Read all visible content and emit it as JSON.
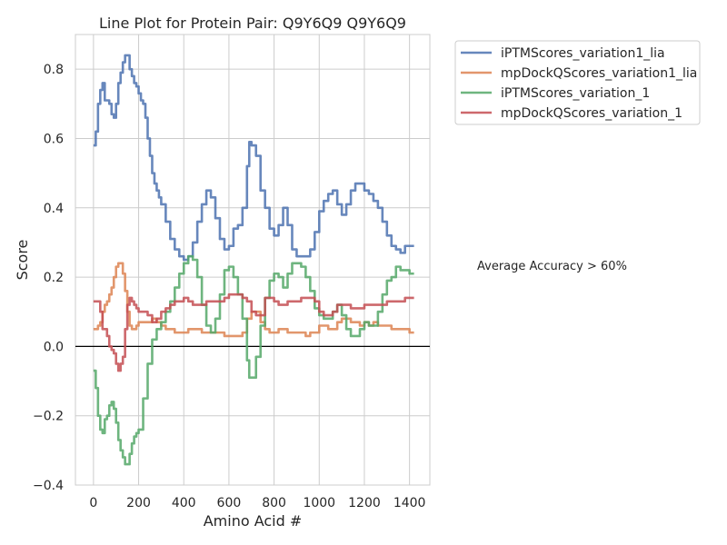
{
  "chart_data": {
    "type": "line",
    "title": "Line Plot for Protein Pair: Q9Y6Q9 Q9Y6Q9",
    "xlabel": "Amino Acid #",
    "ylabel": "Score",
    "xlim": [
      -80,
      1490
    ],
    "ylim": [
      -0.4,
      0.9
    ],
    "xticks": [
      0,
      200,
      400,
      600,
      800,
      1000,
      1200,
      1400
    ],
    "yticks": [
      -0.4,
      -0.2,
      0.0,
      0.2,
      0.4,
      0.6,
      0.8
    ],
    "ytick_labels": [
      "−0.4",
      "−0.2",
      "0.0",
      "0.2",
      "0.4",
      "0.6",
      "0.8"
    ],
    "grid": true,
    "zero_line": 0.0,
    "legend_position": "outside top-right",
    "annotation": "Average Accuracy > 60%",
    "series": [
      {
        "name": "iPTMScores_variation1_lia",
        "color": "#4c72b0",
        "x": [
          0,
          10,
          20,
          30,
          40,
          50,
          60,
          70,
          80,
          90,
          100,
          110,
          120,
          130,
          140,
          150,
          160,
          170,
          180,
          190,
          200,
          210,
          220,
          230,
          240,
          250,
          260,
          270,
          280,
          290,
          300,
          320,
          340,
          360,
          380,
          400,
          420,
          440,
          460,
          480,
          500,
          520,
          540,
          560,
          580,
          600,
          620,
          640,
          660,
          680,
          690,
          700,
          720,
          740,
          760,
          780,
          800,
          820,
          840,
          860,
          880,
          900,
          920,
          940,
          960,
          980,
          1000,
          1020,
          1040,
          1060,
          1080,
          1100,
          1120,
          1140,
          1160,
          1180,
          1200,
          1220,
          1240,
          1260,
          1280,
          1300,
          1320,
          1340,
          1360,
          1380,
          1400,
          1420
        ],
        "values": [
          0.58,
          0.62,
          0.7,
          0.74,
          0.76,
          0.71,
          0.71,
          0.7,
          0.67,
          0.66,
          0.7,
          0.76,
          0.79,
          0.82,
          0.84,
          0.84,
          0.8,
          0.78,
          0.76,
          0.75,
          0.73,
          0.71,
          0.7,
          0.66,
          0.6,
          0.55,
          0.5,
          0.47,
          0.45,
          0.43,
          0.41,
          0.36,
          0.31,
          0.28,
          0.26,
          0.25,
          0.26,
          0.3,
          0.36,
          0.41,
          0.45,
          0.43,
          0.37,
          0.31,
          0.28,
          0.29,
          0.34,
          0.35,
          0.4,
          0.52,
          0.59,
          0.58,
          0.55,
          0.45,
          0.4,
          0.34,
          0.32,
          0.35,
          0.4,
          0.35,
          0.28,
          0.26,
          0.26,
          0.26,
          0.28,
          0.33,
          0.39,
          0.42,
          0.44,
          0.45,
          0.41,
          0.38,
          0.41,
          0.45,
          0.47,
          0.47,
          0.45,
          0.44,
          0.42,
          0.4,
          0.36,
          0.32,
          0.29,
          0.28,
          0.27,
          0.29,
          0.29,
          0.29
        ]
      },
      {
        "name": "mpDockQScores_variation1_lia",
        "color": "#dd8452",
        "x": [
          0,
          10,
          20,
          30,
          40,
          50,
          60,
          70,
          80,
          90,
          100,
          110,
          120,
          130,
          140,
          150,
          160,
          170,
          180,
          190,
          200,
          220,
          240,
          260,
          280,
          300,
          320,
          340,
          360,
          380,
          400,
          420,
          440,
          460,
          480,
          500,
          520,
          540,
          560,
          580,
          600,
          620,
          640,
          660,
          680,
          700,
          720,
          740,
          760,
          780,
          800,
          820,
          840,
          860,
          880,
          900,
          920,
          940,
          960,
          980,
          1000,
          1020,
          1040,
          1060,
          1080,
          1100,
          1120,
          1140,
          1160,
          1180,
          1200,
          1220,
          1240,
          1260,
          1280,
          1300,
          1320,
          1340,
          1360,
          1380,
          1400,
          1420
        ],
        "values": [
          0.05,
          0.05,
          0.06,
          0.07,
          0.1,
          0.12,
          0.13,
          0.15,
          0.17,
          0.2,
          0.23,
          0.24,
          0.24,
          0.21,
          0.16,
          0.1,
          0.06,
          0.05,
          0.05,
          0.06,
          0.07,
          0.07,
          0.07,
          0.08,
          0.07,
          0.06,
          0.05,
          0.05,
          0.04,
          0.04,
          0.04,
          0.05,
          0.05,
          0.05,
          0.04,
          0.04,
          0.04,
          0.04,
          0.04,
          0.03,
          0.03,
          0.03,
          0.03,
          0.04,
          0.08,
          0.1,
          0.1,
          0.07,
          0.05,
          0.04,
          0.04,
          0.05,
          0.05,
          0.04,
          0.04,
          0.04,
          0.04,
          0.03,
          0.04,
          0.04,
          0.06,
          0.06,
          0.05,
          0.05,
          0.07,
          0.08,
          0.08,
          0.07,
          0.07,
          0.06,
          0.07,
          0.06,
          0.07,
          0.06,
          0.06,
          0.06,
          0.05,
          0.05,
          0.05,
          0.05,
          0.04,
          0.04
        ]
      },
      {
        "name": "iPTMScores_variation_1",
        "color": "#55a868",
        "x": [
          0,
          10,
          20,
          30,
          40,
          50,
          60,
          70,
          80,
          90,
          100,
          110,
          120,
          130,
          140,
          150,
          160,
          170,
          180,
          190,
          200,
          220,
          240,
          260,
          280,
          300,
          320,
          340,
          360,
          380,
          400,
          420,
          440,
          460,
          480,
          500,
          520,
          540,
          560,
          580,
          600,
          620,
          640,
          660,
          680,
          690,
          700,
          720,
          740,
          760,
          780,
          800,
          820,
          840,
          860,
          880,
          900,
          920,
          940,
          960,
          980,
          1000,
          1020,
          1040,
          1060,
          1080,
          1100,
          1120,
          1140,
          1160,
          1180,
          1200,
          1220,
          1240,
          1260,
          1280,
          1300,
          1320,
          1340,
          1360,
          1380,
          1400,
          1420
        ],
        "values": [
          -0.07,
          -0.12,
          -0.2,
          -0.24,
          -0.25,
          -0.21,
          -0.2,
          -0.17,
          -0.16,
          -0.18,
          -0.22,
          -0.27,
          -0.3,
          -0.32,
          -0.34,
          -0.34,
          -0.31,
          -0.28,
          -0.26,
          -0.25,
          -0.24,
          -0.15,
          -0.05,
          0.02,
          0.05,
          0.07,
          0.1,
          0.13,
          0.17,
          0.21,
          0.24,
          0.26,
          0.25,
          0.2,
          0.12,
          0.06,
          0.04,
          0.08,
          0.15,
          0.22,
          0.23,
          0.2,
          0.15,
          0.08,
          -0.04,
          -0.09,
          -0.09,
          -0.03,
          0.06,
          0.14,
          0.19,
          0.21,
          0.2,
          0.17,
          0.21,
          0.24,
          0.24,
          0.23,
          0.2,
          0.16,
          0.11,
          0.09,
          0.08,
          0.08,
          0.1,
          0.12,
          0.09,
          0.05,
          0.03,
          0.03,
          0.05,
          0.07,
          0.06,
          0.06,
          0.1,
          0.15,
          0.19,
          0.2,
          0.23,
          0.22,
          0.22,
          0.21,
          0.21
        ]
      },
      {
        "name": "mpDockQScores_variation_1",
        "color": "#c44e52",
        "x": [
          0,
          10,
          20,
          30,
          40,
          50,
          60,
          70,
          80,
          90,
          100,
          110,
          120,
          130,
          140,
          150,
          160,
          170,
          180,
          190,
          200,
          220,
          240,
          260,
          280,
          300,
          320,
          340,
          360,
          380,
          400,
          420,
          440,
          460,
          480,
          500,
          520,
          540,
          560,
          580,
          600,
          620,
          640,
          660,
          680,
          700,
          720,
          740,
          760,
          780,
          800,
          820,
          840,
          860,
          880,
          900,
          920,
          940,
          960,
          980,
          1000,
          1020,
          1040,
          1060,
          1080,
          1100,
          1120,
          1140,
          1160,
          1180,
          1200,
          1220,
          1240,
          1260,
          1280,
          1300,
          1320,
          1340,
          1360,
          1380,
          1400,
          1420
        ],
        "values": [
          0.13,
          0.13,
          0.13,
          0.1,
          0.05,
          0.05,
          0.03,
          0.0,
          -0.01,
          -0.02,
          -0.05,
          -0.07,
          -0.05,
          -0.03,
          0.05,
          0.12,
          0.14,
          0.13,
          0.12,
          0.11,
          0.1,
          0.1,
          0.09,
          0.07,
          0.08,
          0.1,
          0.11,
          0.12,
          0.13,
          0.13,
          0.14,
          0.13,
          0.12,
          0.12,
          0.12,
          0.13,
          0.13,
          0.13,
          0.13,
          0.14,
          0.15,
          0.15,
          0.15,
          0.14,
          0.13,
          0.1,
          0.09,
          0.09,
          0.14,
          0.14,
          0.13,
          0.12,
          0.12,
          0.13,
          0.13,
          0.13,
          0.14,
          0.14,
          0.14,
          0.13,
          0.1,
          0.09,
          0.09,
          0.1,
          0.12,
          0.12,
          0.12,
          0.11,
          0.11,
          0.11,
          0.12,
          0.12,
          0.12,
          0.12,
          0.12,
          0.13,
          0.13,
          0.13,
          0.13,
          0.14,
          0.14,
          0.14
        ]
      }
    ]
  }
}
